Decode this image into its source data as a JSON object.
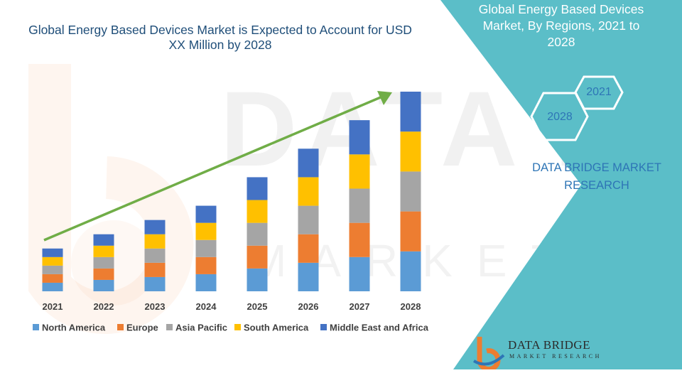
{
  "chart_data": {
    "type": "bar",
    "stacked": true,
    "title": "Global Energy Based Devices Market is Expected to Account for USD XX Million by 2028",
    "categories": [
      "2021",
      "2022",
      "2023",
      "2024",
      "2025",
      "2026",
      "2027",
      "2028"
    ],
    "series": [
      {
        "name": "North America",
        "color": "#5b9bd5",
        "values": [
          12,
          16,
          20,
          24,
          32,
          40,
          48,
          56
        ]
      },
      {
        "name": "Europe",
        "color": "#ed7d31",
        "values": [
          12,
          16,
          20,
          24,
          32,
          40,
          48,
          56
        ]
      },
      {
        "name": "Asia Pacific",
        "color": "#a5a5a5",
        "values": [
          12,
          16,
          20,
          24,
          32,
          40,
          48,
          56
        ]
      },
      {
        "name": "South America",
        "color": "#ffc000",
        "values": [
          12,
          16,
          20,
          24,
          32,
          40,
          48,
          56
        ]
      },
      {
        "name": "Middle East and Africa",
        "color": "#4472c4",
        "values": [
          12,
          16,
          20,
          24,
          32,
          40,
          48,
          56
        ]
      }
    ],
    "ylim": [
      0,
      280
    ],
    "grid": false,
    "legend_position": "bottom",
    "trend_arrow_color": "#70ad47"
  },
  "side_panel": {
    "title": "Global Energy Based Devices Market, By Regions, 2021 to 2028",
    "hex_start": "2021",
    "hex_end": "2028",
    "brand": "DATA BRIDGE MARKET RESEARCH",
    "panel_color": "#5bbec8"
  },
  "watermark": {
    "big": "DATA BRIDGE",
    "small": "MARKET RESEARCH"
  },
  "logo": {
    "name": "DATA BRIDGE",
    "sub": "MARKET RESEARCH"
  }
}
